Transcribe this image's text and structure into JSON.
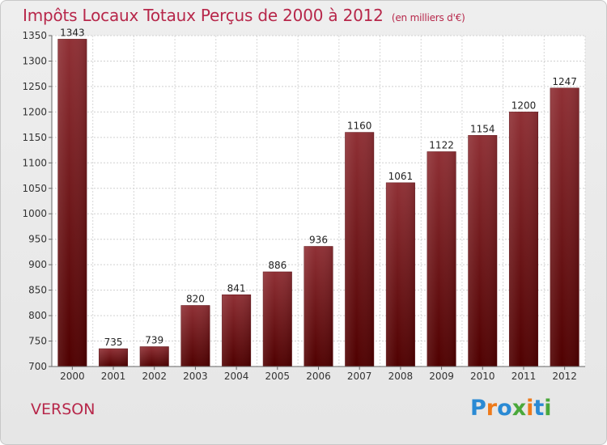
{
  "chart_data": {
    "type": "bar",
    "title": "Impôts Locaux Totaux Perçus de 2000 à 2012",
    "subtitle": "(en milliers d'€)",
    "categories": [
      "2000",
      "2001",
      "2002",
      "2003",
      "2004",
      "2005",
      "2006",
      "2007",
      "2008",
      "2009",
      "2010",
      "2011",
      "2012"
    ],
    "values": [
      1343,
      735,
      739,
      820,
      841,
      886,
      936,
      1160,
      1061,
      1122,
      1154,
      1200,
      1247
    ],
    "ylim": [
      700,
      1350
    ],
    "yticks": [
      700,
      750,
      800,
      850,
      900,
      950,
      1000,
      1050,
      1100,
      1150,
      1200,
      1250,
      1300,
      1350
    ],
    "grid": true,
    "bar_color": "#7a1a1f"
  },
  "footer": {
    "place": "VERSON",
    "logo_letters": [
      {
        "ch": "P",
        "color": "#2a8ad4"
      },
      {
        "ch": "r",
        "color": "#ee7a1a"
      },
      {
        "ch": "o",
        "color": "#2a8ad4"
      },
      {
        "ch": "x",
        "color": "#4aa83a"
      },
      {
        "ch": "i",
        "color": "#ee7a1a"
      },
      {
        "ch": "t",
        "color": "#2a8ad4"
      },
      {
        "ch": "i",
        "color": "#4aa83a"
      }
    ]
  }
}
